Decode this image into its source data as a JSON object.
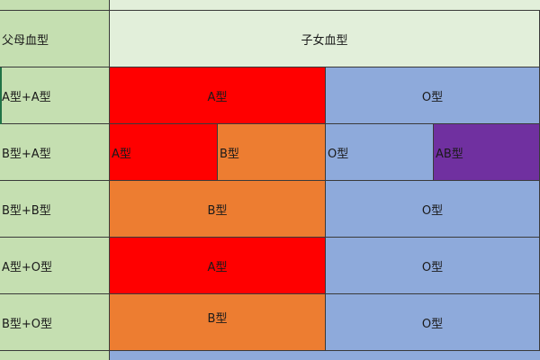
{
  "table": {
    "header": {
      "parent_label": "父母血型",
      "child_label": "子女血型"
    },
    "rows": [
      {
        "parents": "A型+A型",
        "children": [
          "A型",
          "O型"
        ]
      },
      {
        "parents": "B型+A型",
        "children": [
          "A型",
          "B型",
          "O型",
          "AB型"
        ]
      },
      {
        "parents": "B型+B型",
        "children": [
          "B型",
          "O型"
        ]
      },
      {
        "parents": "A型+O型",
        "children": [
          "A型",
          "O型"
        ]
      },
      {
        "parents": "B型+O型",
        "children": [
          "B型",
          "O型"
        ]
      }
    ]
  },
  "colors": {
    "parent_column": "#c5dfb1",
    "header": "#e2efda",
    "type_A": "#ff0000",
    "type_B": "#ed7d31",
    "type_O": "#8eaadb",
    "type_AB": "#7030a0"
  }
}
